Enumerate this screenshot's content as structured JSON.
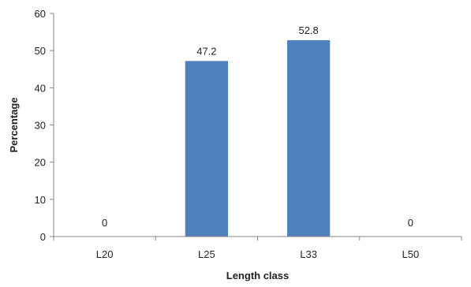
{
  "chart_data": {
    "type": "bar",
    "categories": [
      "L20",
      "L25",
      "L33",
      "L50"
    ],
    "values": [
      0,
      47.2,
      52.8,
      0
    ],
    "data_labels": [
      "0",
      "47.2",
      "52.8",
      "0"
    ],
    "xlabel": "Length class",
    "ylabel": "Percentage",
    "ylim": [
      0,
      60
    ],
    "yticks": [
      "0",
      "10",
      "20",
      "30",
      "40",
      "50",
      "60"
    ],
    "grid": false,
    "legend": "none",
    "bar_color": "#4f81bd",
    "axis_color": "#868686"
  }
}
